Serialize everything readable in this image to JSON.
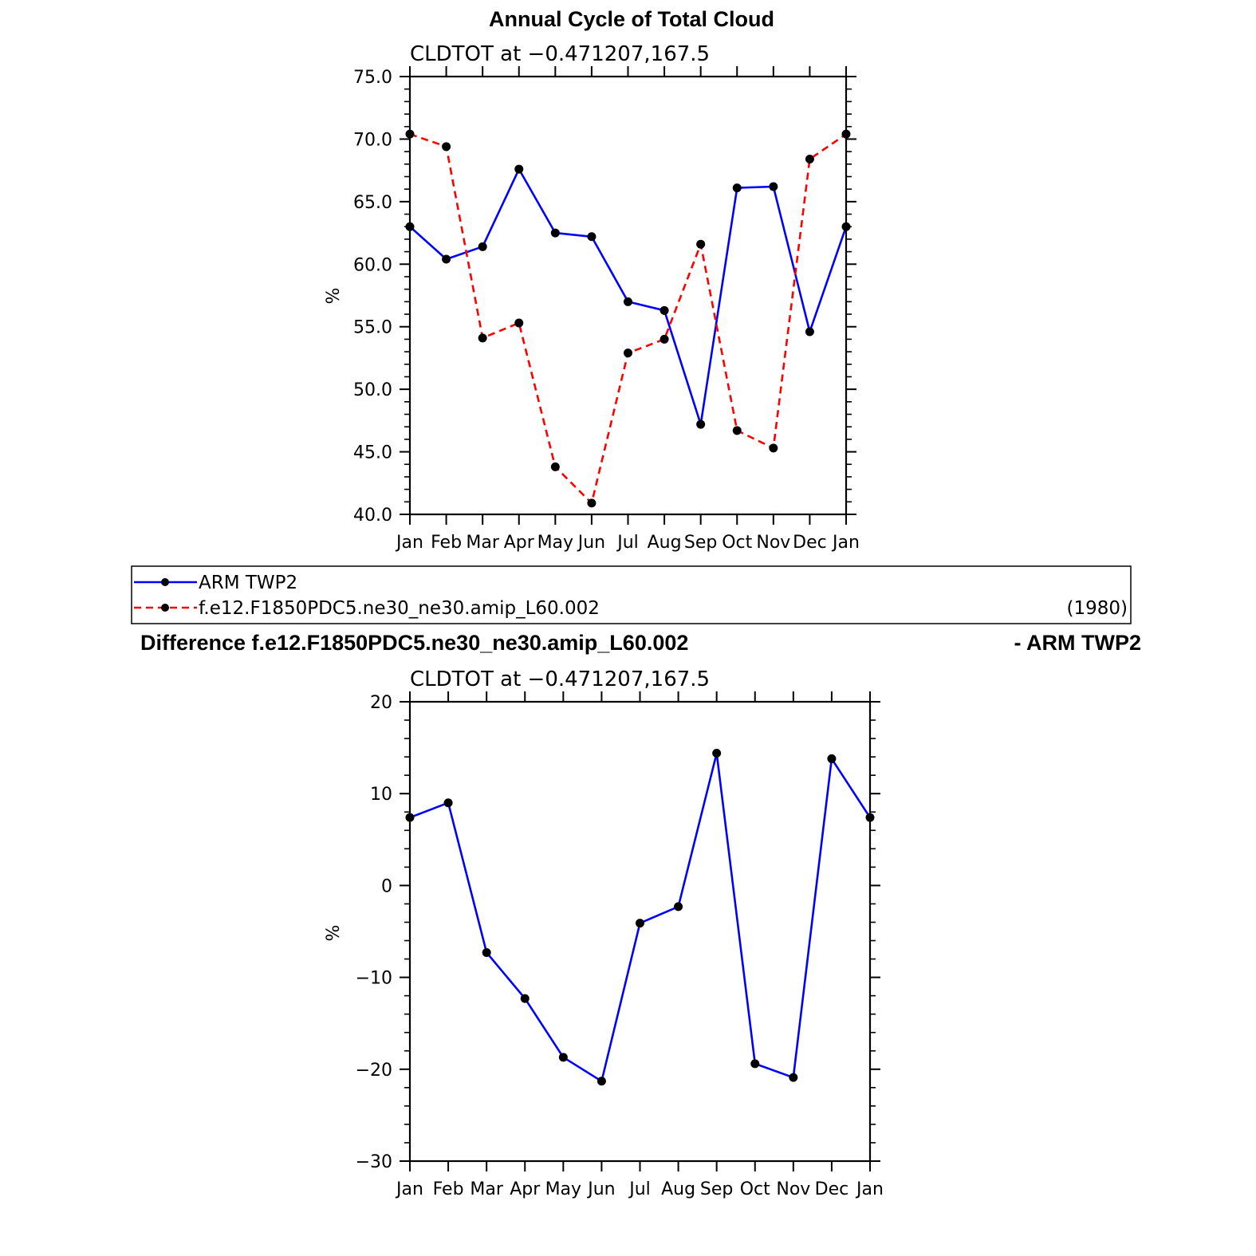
{
  "figure_title": "Annual Cycle of Total Cloud",
  "legend": {
    "entries": [
      {
        "label": "ARM TWP2",
        "color": "#0000ff",
        "dash": "solid"
      },
      {
        "label": "f.e12.F1850PDC5.ne30_ne30.amip_L60.002",
        "color": "#ff0000",
        "dash": "dashed"
      }
    ],
    "note": "(1980)"
  },
  "difference_title": {
    "left": "Difference f.e12.F1850PDC5.ne30_ne30.amip_L60.002",
    "right": "- ARM TWP2"
  },
  "chart_data": [
    {
      "type": "line",
      "subtitle": "CLDTOT at −0.471207,167.5",
      "ylabel": "%",
      "categories": [
        "Jan",
        "Feb",
        "Mar",
        "Apr",
        "May",
        "Jun",
        "Jul",
        "Aug",
        "Sep",
        "Oct",
        "Nov",
        "Dec",
        "Jan"
      ],
      "ylim": [
        40,
        75
      ],
      "yticks": [
        "40.0",
        "45.0",
        "50.0",
        "55.0",
        "60.0",
        "65.0",
        "70.0",
        "75.0"
      ],
      "series": [
        {
          "name": "ARM TWP2",
          "color": "#0000ff",
          "dash": "solid",
          "values": [
            63.0,
            60.4,
            61.4,
            67.6,
            62.5,
            62.2,
            57.0,
            56.3,
            47.2,
            66.1,
            66.2,
            54.6,
            63.0
          ]
        },
        {
          "name": "f.e12.F1850PDC5.ne30_ne30.amip_L60.002",
          "color": "#ff0000",
          "dash": "dashed",
          "values": [
            70.4,
            69.4,
            54.1,
            55.3,
            43.8,
            40.9,
            52.9,
            54.0,
            61.6,
            46.7,
            45.3,
            68.4,
            70.4
          ]
        }
      ]
    },
    {
      "type": "line",
      "subtitle": "CLDTOT at −0.471207,167.5",
      "ylabel": "%",
      "categories": [
        "Jan",
        "Feb",
        "Mar",
        "Apr",
        "May",
        "Jun",
        "Jul",
        "Aug",
        "Sep",
        "Oct",
        "Nov",
        "Dec",
        "Jan"
      ],
      "ylim": [
        -30,
        20
      ],
      "yticks": [
        "−30",
        "−20",
        "−10",
        "0",
        "10",
        "20"
      ],
      "series": [
        {
          "color": "#0000ff",
          "dash": "solid",
          "values": [
            7.4,
            9.0,
            -7.3,
            -12.3,
            -18.7,
            -21.3,
            -4.1,
            -2.3,
            14.4,
            -19.4,
            -20.9,
            13.8,
            7.4
          ]
        }
      ]
    }
  ]
}
